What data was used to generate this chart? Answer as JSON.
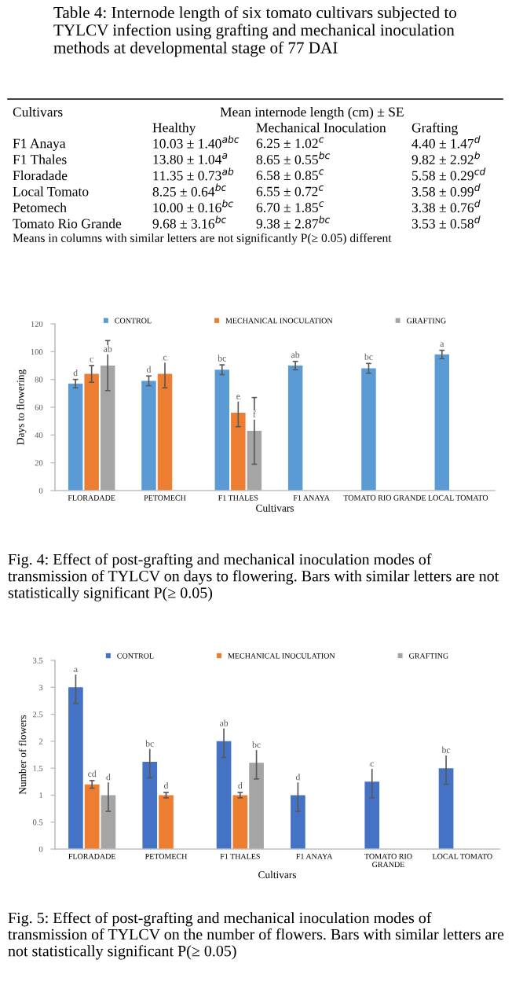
{
  "chart_data": [
    {
      "type": "other",
      "title": "Table 4: Internode length of six tomato cultivars subjected to TYLCV infection using grafting and mechanical inoculation methods at developmental stage of 77 DAI",
      "ylabel": "Cultivars",
      "xlabel": "Mean internode length (cm) ± SE",
      "categories": [
        "Healthy",
        "Mechanical Inoculation",
        "Grafting"
      ],
      "y_categories": [
        "F1 Anaya",
        "F1 Thales",
        "Floradade",
        "Local Tomato",
        "Petomech",
        "Tomato Rio Grande"
      ],
      "cell_labels": [
        [
          "10.03 ± 1.40$^{abc}$",
          "6.25 ± 1.02$^{c}$",
          "4.40 ± 1.47$^{d}$"
        ],
        [
          "13.80 ± 1.04$^{a}$",
          "8.65 ± 0.55$^{bc}$",
          "9.82 ± 2.92$^{b}$"
        ],
        [
          "11.35 ± 0.73$^{ab}$",
          "6.58 ± 0.85$^{c}$",
          "5.58 ± 0.29$^{cd}$"
        ],
        [
          "8.25 ± 0.64$^{bc}$",
          "6.55 ± 0.72$^{c}$",
          "3.58 ± 0.99$^{d}$"
        ],
        [
          "10.00 ± 0.16$^{bc}$",
          "6.70 ± 1.85$^{c}$",
          "3.38 ± 0.76$^{d}$"
        ],
        [
          "9.68 ± 3.16$^{bc}$",
          "9.38 ± 2.87$^{bc}$",
          "3.53 ± 0.58$^{d}$"
        ]
      ],
      "annotations": [
        "Means in columns with similar letters are not significantly P(≥ 0.05) different"
      ]
    },
    {
      "type": "bar",
      "title": "Fig. 4: Effect of post-grafting and mechanical inoculation modes of transmission of TYLCV on days to flowering. Bars with similar letters are not statistically significant P(≥ 0.05)",
      "xlabel": "Cultivars",
      "ylabel": "Days to flowering",
      "categories": [
        "FLORADADE",
        "PETOMECH",
        "F1 THALES",
        "F1 ANAYA",
        "TOMATO RIO GRANDE",
        "LOCAL TOMATO"
      ],
      "ylim": [
        0,
        120
      ],
      "yticks": [
        0,
        20,
        40,
        60,
        80,
        100,
        120
      ],
      "legend": "top",
      "series": [
        {
          "name": "CONTROL",
          "color": "#5b9bd5",
          "values": [
            77,
            79,
            87,
            90,
            88,
            98
          ],
          "errors": [
            3,
            3.5,
            3.5,
            3,
            3.5,
            3
          ],
          "value_labels": [
            "d",
            "d",
            "bc",
            "ab",
            "bc",
            "a"
          ]
        },
        {
          "name": "MECHANICAL INOCULATION",
          "color": "#ed7d31",
          "values": [
            84,
            84,
            56,
            null,
            null,
            null
          ],
          "errors": [
            6,
            10,
            10,
            null,
            null,
            null
          ],
          "value_labels": [
            "c",
            "c",
            "e",
            null,
            null,
            null
          ]
        },
        {
          "name": "GRAFTING",
          "color": "#a5a5a5",
          "values": [
            90,
            null,
            43,
            null,
            null,
            null
          ],
          "errors": [
            18,
            null,
            24,
            null,
            null,
            null
          ],
          "value_labels": [
            "ab",
            null,
            "f",
            null,
            null,
            null
          ]
        }
      ]
    },
    {
      "type": "bar",
      "title": "Fig. 5: Effect of post-grafting and mechanical inoculation modes of transmission of TYLCV on the number of flowers. Bars with similar letters are not statistically significant P(≥ 0.05)",
      "xlabel": "Cultivars",
      "ylabel": "Number of flowers",
      "categories": [
        "FLORADADE",
        "PETOMECH",
        "F1 THALES",
        "F1 ANAYA",
        "TOMATO RIO\nGRANDE",
        "LOCAL TOMATO"
      ],
      "ylim": [
        0,
        3.5
      ],
      "yticks": [
        0,
        0.5,
        1,
        1.5,
        2,
        2.5,
        3,
        3.5
      ],
      "legend": "top",
      "series": [
        {
          "name": "CONTROL",
          "color": "#4472c4",
          "values": [
            3.0,
            1.62,
            2.0,
            1.0,
            1.25,
            1.5
          ],
          "errors": [
            0.3,
            0.3,
            0.3,
            0.3,
            0.3,
            0.3
          ],
          "value_labels": [
            "a",
            "bc",
            "ab",
            "d",
            "c",
            "bc"
          ]
        },
        {
          "name": "MECHANICAL INOCULATION",
          "color": "#ed7d31",
          "values": [
            1.2,
            1.0,
            1.0,
            null,
            null,
            null
          ],
          "errors": [
            0.07,
            0.05,
            0.05,
            null,
            null,
            null
          ],
          "value_labels": [
            "cd",
            "d",
            "d",
            null,
            null,
            null
          ]
        },
        {
          "name": "GRAFTING",
          "color": "#a5a5a5",
          "values": [
            1.0,
            null,
            1.6,
            null,
            null,
            null
          ],
          "errors": [
            0.3,
            null,
            0.3,
            null,
            null,
            null
          ],
          "value_labels": [
            "d",
            null,
            "bc",
            null,
            null,
            null
          ]
        }
      ]
    }
  ]
}
